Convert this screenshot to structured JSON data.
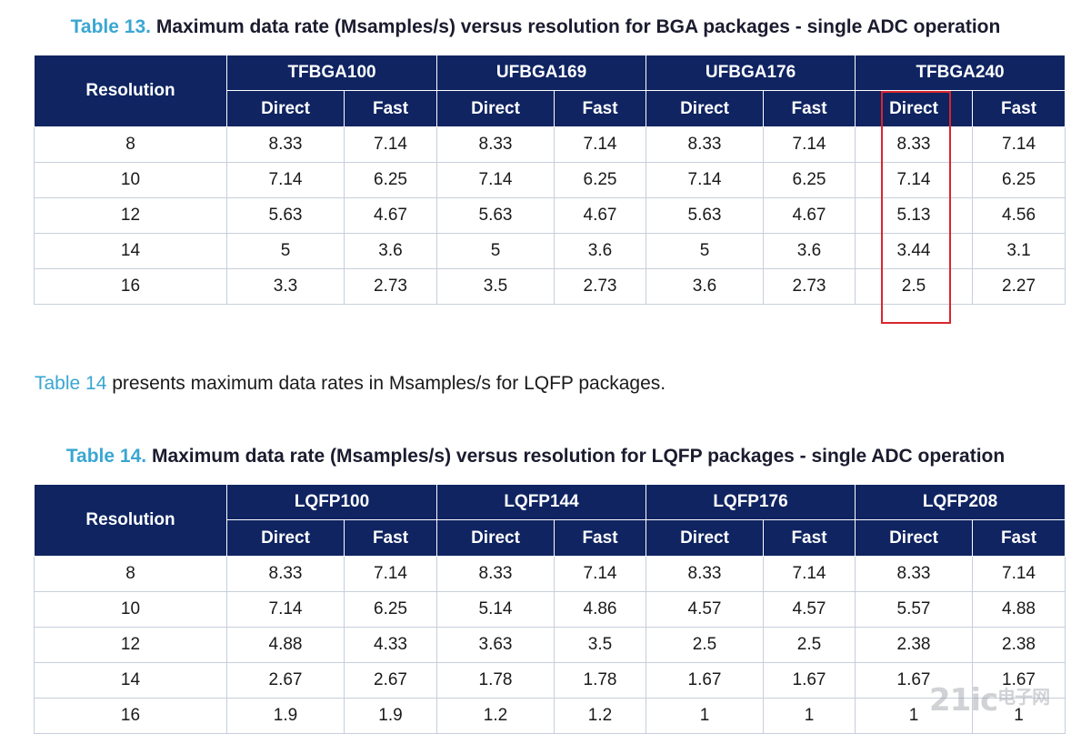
{
  "table13": {
    "caption_num": "Table 13.",
    "caption_text": "Maximum data rate (Msamples/s) versus resolution for BGA packages - single ADC operation",
    "resolution_header": "Resolution",
    "packages": [
      "TFBGA100",
      "UFBGA169",
      "UFBGA176",
      "TFBGA240"
    ],
    "sub_headers": [
      "Direct",
      "Fast"
    ],
    "rows": [
      [
        "8",
        "8.33",
        "7.14",
        "8.33",
        "7.14",
        "8.33",
        "7.14",
        "8.33",
        "7.14"
      ],
      [
        "10",
        "7.14",
        "6.25",
        "7.14",
        "6.25",
        "7.14",
        "6.25",
        "7.14",
        "6.25"
      ],
      [
        "12",
        "5.63",
        "4.67",
        "5.63",
        "4.67",
        "5.63",
        "4.67",
        "5.13",
        "4.56"
      ],
      [
        "14",
        "5",
        "3.6",
        "5",
        "3.6",
        "5",
        "3.6",
        "3.44",
        "3.1"
      ],
      [
        "16",
        "3.3",
        "2.73",
        "3.5",
        "2.73",
        "3.6",
        "2.73",
        "2.5",
        "2.27"
      ]
    ]
  },
  "paragraph": {
    "link": "Table 14",
    "text": " presents maximum data rates in Msamples/s for LQFP packages."
  },
  "table14": {
    "caption_num": "Table 14.",
    "caption_text": "Maximum data rate (Msamples/s) versus resolution for LQFP packages - single ADC operation",
    "resolution_header": "Resolution",
    "packages": [
      "LQFP100",
      "LQFP144",
      "LQFP176",
      "LQFP208"
    ],
    "sub_headers": [
      "Direct",
      "Fast"
    ],
    "rows": [
      [
        "8",
        "8.33",
        "7.14",
        "8.33",
        "7.14",
        "8.33",
        "7.14",
        "8.33",
        "7.14"
      ],
      [
        "10",
        "7.14",
        "6.25",
        "5.14",
        "4.86",
        "4.57",
        "4.57",
        "5.57",
        "4.88"
      ],
      [
        "12",
        "4.88",
        "4.33",
        "3.63",
        "3.5",
        "2.5",
        "2.5",
        "2.38",
        "2.38"
      ],
      [
        "14",
        "2.67",
        "2.67",
        "1.78",
        "1.78",
        "1.67",
        "1.67",
        "1.67",
        "1.67"
      ],
      [
        "16",
        "1.9",
        "1.9",
        "1.2",
        "1.2",
        "1",
        "1",
        "1",
        "1"
      ]
    ]
  },
  "highlight_color": "#d9262c",
  "header_bg": "#0f2461",
  "link_color": "#3aa6d2",
  "watermark": {
    "main": "21ic",
    "sub": "电子网"
  }
}
